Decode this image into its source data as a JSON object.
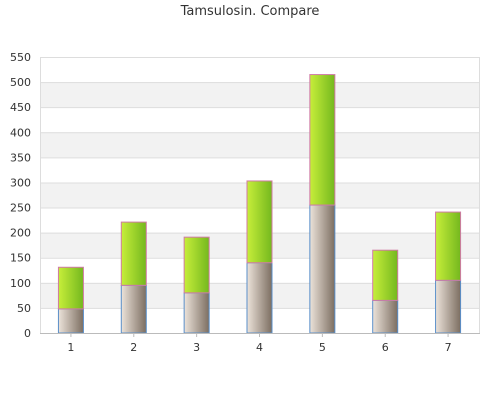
{
  "chart_data": {
    "type": "bar",
    "stacked": true,
    "title": "Tamsulosin. Compare",
    "xlabel": "",
    "ylabel": "",
    "categories": [
      "1",
      "2",
      "3",
      "4",
      "5",
      "6",
      "7"
    ],
    "series": [
      {
        "values": [
          48,
          95,
          80,
          140,
          255,
          65,
          105
        ],
        "color": "#a89888"
      },
      {
        "values": [
          83,
          126,
          111,
          163,
          260,
          100,
          136
        ],
        "color": "#9fd832"
      }
    ],
    "ylim": [
      0,
      550
    ],
    "yticks": [
      0,
      50,
      100,
      150,
      200,
      250,
      300,
      350,
      400,
      450,
      500,
      550
    ],
    "grid": true,
    "banded_background": true,
    "legend": "none",
    "colors": {
      "bottom_fill_light": "#ece3da",
      "bottom_fill_dark": "#7c6e61",
      "bottom_outline": "#5a8fc9",
      "top_fill_light": "#c7ee3a",
      "top_fill_dark": "#74b81e",
      "top_outline": "#d07aa5",
      "band": "#f2f2f2",
      "grid": "#dddddd"
    }
  }
}
